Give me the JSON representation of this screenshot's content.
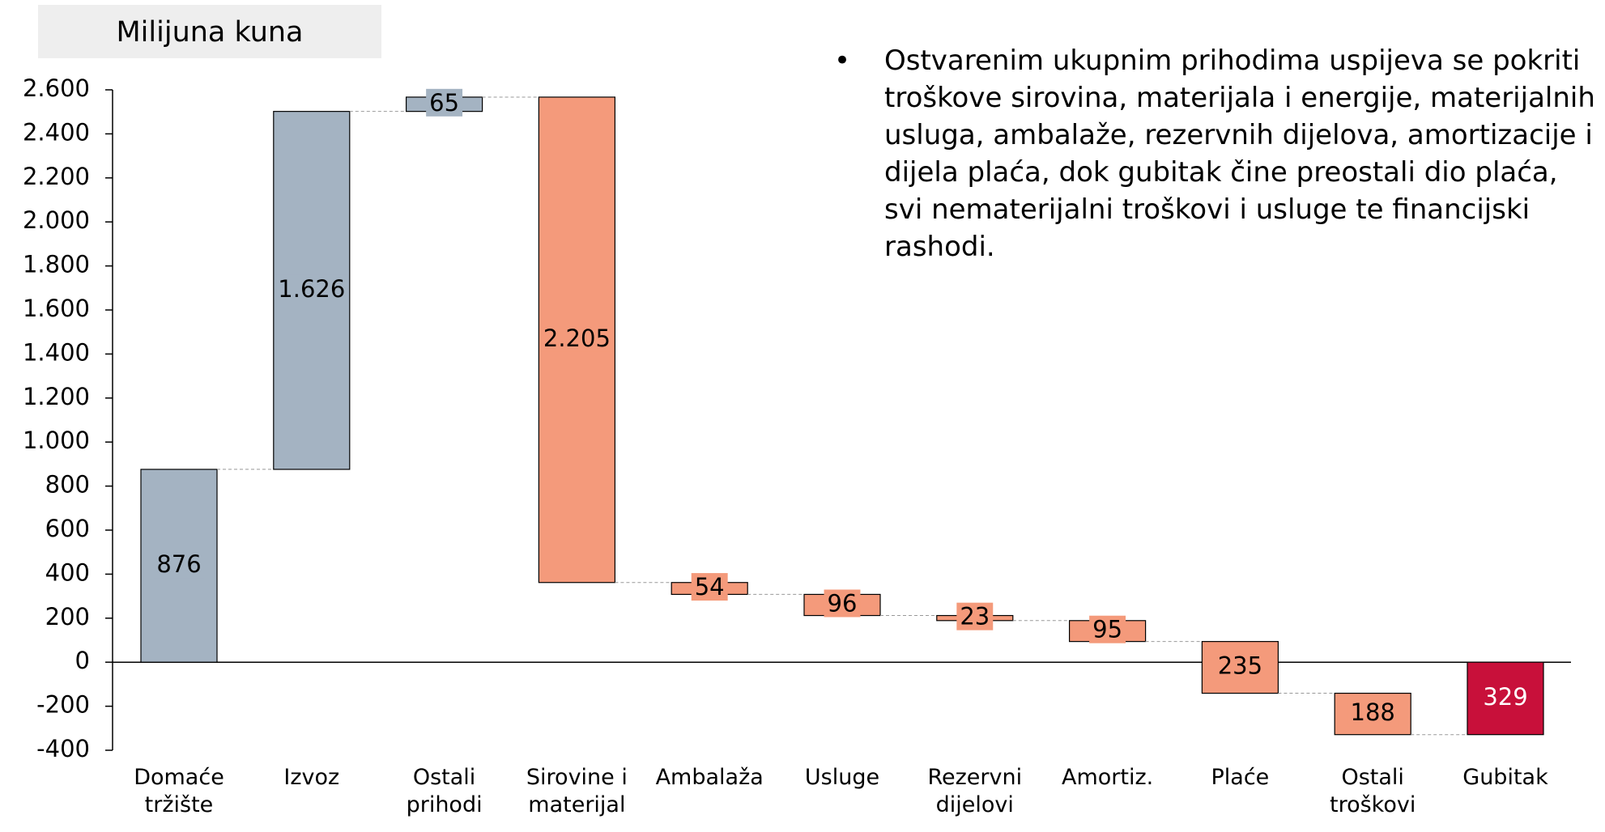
{
  "chart_data": {
    "type": "waterfall",
    "title": "Milijuna kuna",
    "categories": [
      "Domaće tržište",
      "Izvoz",
      "Ostali prihodi",
      "Sirovine i materijal",
      "Ambalaža",
      "Usluge",
      "Rezervni dijelovi",
      "Amortiz.",
      "Plaće",
      "Ostali troškovi",
      "Gubitak"
    ],
    "values": [
      876,
      1626,
      65,
      -2205,
      -54,
      -96,
      -23,
      -95,
      -235,
      -188,
      -329
    ],
    "value_labels": [
      "876",
      "1.626",
      "65",
      "2.205",
      "54",
      "96",
      "23",
      "95",
      "235",
      "188",
      "329"
    ],
    "measure": [
      "relative",
      "relative",
      "relative",
      "relative",
      "relative",
      "relative",
      "relative",
      "relative",
      "relative",
      "relative",
      "total"
    ],
    "colors": {
      "increase": "#a4b3c2",
      "decrease": "#f49a7b",
      "total": "#c8103a"
    },
    "ylim": [
      -400,
      2600
    ],
    "yticks": [
      -400,
      -200,
      0,
      200,
      400,
      600,
      800,
      {
        "value": 1000,
        "label": "1.000"
      },
      {
        "value": 1200,
        "label": "1.200"
      },
      {
        "value": 1400,
        "label": "1.400"
      },
      {
        "value": 1600,
        "label": "1.600"
      },
      {
        "value": 1800,
        "label": "1.800"
      },
      {
        "value": 2000,
        "label": "2.000"
      },
      {
        "value": 2200,
        "label": "2.200"
      },
      {
        "value": 2400,
        "label": "2.400"
      },
      {
        "value": 2600,
        "label": "2.600"
      }
    ],
    "bullets": [
      "Ostvarenim ukupnim prihodima uspijeva se pokriti troškove sirovina, materijala i energije, materijalnih usluga, ambalaže, rezervnih dijelova, amortizacije i dijela plaća, dok gubitak čine preostali dio plaća, svi nematerijalni troškovi i usluge te financijski rashodi."
    ]
  }
}
